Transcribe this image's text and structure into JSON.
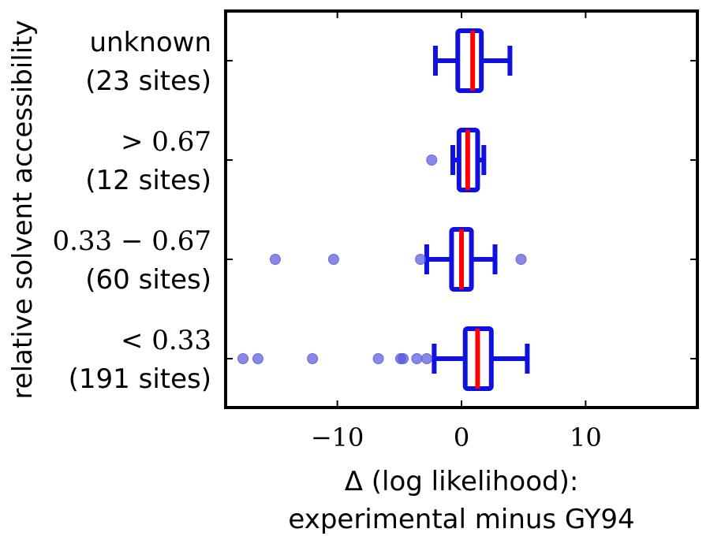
{
  "chart_data": {
    "type": "boxplot",
    "orientation": "horizontal",
    "xlabel_line1": "Δ (log likelihood):",
    "xlabel_line2": "experimental minus GY94",
    "ylabel": "relative solvent accessibility",
    "xlim": [
      -19,
      19
    ],
    "x_ticks": [
      -10,
      0,
      10
    ],
    "x_tick_labels": [
      "−10",
      "0",
      "10"
    ],
    "grid": false,
    "colors": {
      "box": "#1010e0",
      "median": "#ff0000",
      "outlier": "#5555dd"
    },
    "categories": [
      {
        "label_line1": "unknown",
        "label_line2": "(23 sites)",
        "whisker_low": -2.1,
        "q1": -0.3,
        "median": 0.9,
        "q3": 1.6,
        "whisker_high": 3.9,
        "outliers": []
      },
      {
        "label_line1": "> 0.67",
        "label_line2": "(12 sites)",
        "whisker_low": -0.7,
        "q1": -0.2,
        "median": 0.5,
        "q3": 1.3,
        "whisker_high": 1.8,
        "outliers": [
          -2.4
        ]
      },
      {
        "label_line1": "0.33 − 0.67",
        "label_line2": "(60 sites)",
        "whisker_low": -2.8,
        "q1": -0.8,
        "median": 0.0,
        "q3": 0.8,
        "whisker_high": 2.7,
        "outliers": [
          -15.0,
          -10.3,
          -3.3,
          4.8
        ]
      },
      {
        "label_line1": "< 0.33",
        "label_line2": "(191 sites)",
        "whisker_low": -2.2,
        "q1": 0.3,
        "median": 1.3,
        "q3": 2.4,
        "whisker_high": 5.3,
        "outliers": [
          -17.6,
          -16.4,
          -12.0,
          -6.7,
          -4.9,
          -4.7,
          -3.6,
          -2.8
        ]
      }
    ]
  }
}
